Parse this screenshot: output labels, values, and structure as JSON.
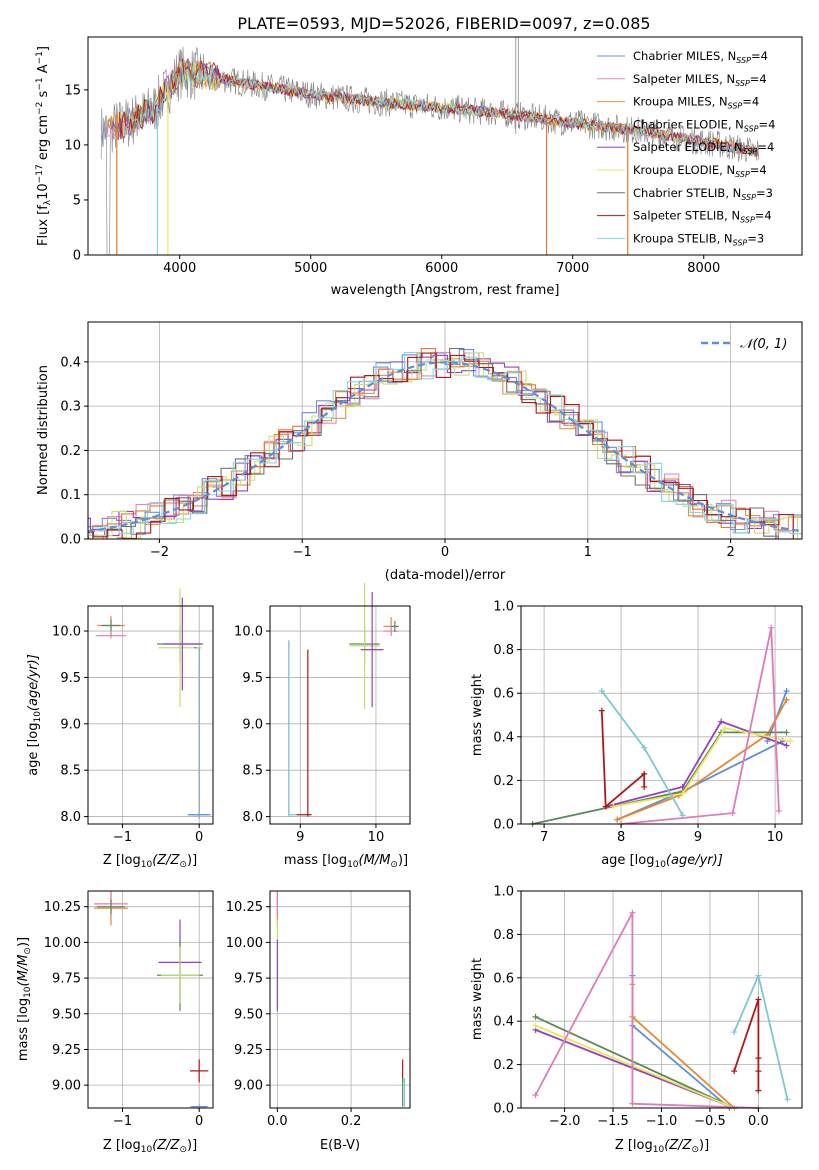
{
  "figure": {
    "title": "PLATE=0593, MJD=52026, FIBERID=0097, z=0.085"
  },
  "colors": {
    "model_series": [
      "#6a8fd8",
      "#e588be",
      "#d89a3c",
      "#e8782a",
      "#9a3fc0",
      "#e8e858",
      "#707070",
      "#b01818",
      "#80d8e0"
    ],
    "fit_lines": [
      "#5b8ee0",
      "#e07ab8",
      "#e8882a",
      "#5a8a5a",
      "#9a3fc0",
      "#e8e858",
      "#b01818",
      "#7cc8d0",
      "#c0e070"
    ],
    "data_grey": "#808080",
    "normal_curve": "#5b8ee0"
  },
  "chart_data": [
    {
      "id": "spectrum",
      "type": "line",
      "xlabel": "wavelength [Angstrom, rest frame]",
      "ylabel": "Flux [f",
      "ylabel_sub": "λ",
      "ylabel_rest": "10",
      "ylabel_sup1": "−17",
      "ylabel_units": " erg cm",
      "ylabel_sup2": "−2",
      "ylabel_s": " s",
      "ylabel_sup3": "−1",
      "ylabel_A": " A",
      "ylabel_sup4": "−1",
      "ylabel_close": "]",
      "xlim": [
        3300,
        8750
      ],
      "ylim": [
        0,
        19.8
      ],
      "xticks": [
        4000,
        5000,
        6000,
        7000,
        8000
      ],
      "yticks": [
        0,
        5,
        10,
        15
      ],
      "legend_location": "upper right",
      "legend": [
        {
          "name": "Chabrier MILES, N",
          "sub": "SSP",
          "tail": "=4"
        },
        {
          "name": "Salpeter MILES, N",
          "sub": "SSP",
          "tail": "=4"
        },
        {
          "name": "Kroupa MILES, N",
          "sub": "SSP",
          "tail": "=4"
        },
        {
          "name": "Chabrier ELODIE, N",
          "sub": "SSP",
          "tail": "=4"
        },
        {
          "name": "Salpeter ELODIE, N",
          "sub": "SSP",
          "tail": "=4"
        },
        {
          "name": "Kroupa ELODIE, N",
          "sub": "SSP",
          "tail": "=4"
        },
        {
          "name": "Chabrier STELIB, N",
          "sub": "SSP",
          "tail": "=3"
        },
        {
          "name": "Salpeter STELIB, N",
          "sub": "SSP",
          "tail": "=4"
        },
        {
          "name": "Kroupa STELIB, N",
          "sub": "SSP",
          "tail": "=3"
        }
      ],
      "continuum": {
        "x": [
          3400,
          3600,
          3800,
          4000,
          4200,
          4500,
          5000,
          5500,
          6000,
          6500,
          7000,
          7500,
          8000,
          8400
        ],
        "y": [
          11.2,
          12.0,
          13.2,
          16.6,
          16.3,
          15.6,
          14.6,
          13.9,
          13.4,
          12.8,
          12.0,
          11.3,
          10.3,
          9.4
        ]
      }
    },
    {
      "id": "residuals",
      "type": "line",
      "xlabel": "(data-model)/error",
      "ylabel": "Normed distribution",
      "xlim": [
        -2.5,
        2.5
      ],
      "ylim": [
        0,
        0.49
      ],
      "xticks": [
        -2,
        -1,
        0,
        1,
        2
      ],
      "yticks": [
        0.0,
        0.1,
        0.2,
        0.3,
        0.4
      ],
      "grid": true,
      "legend_location": "upper right",
      "legend": [
        {
          "name": "𝒩(0, 1)"
        }
      ]
    },
    {
      "id": "age_vs_Z",
      "type": "scatter",
      "xlabel": "Z [log",
      "xlabel_sub": "10",
      "xlabel_rest": "(Z/Z",
      "xlabel_sun_sub": "⊙",
      "xlabel_close": ")]",
      "ylabel": "age  [log",
      "ylabel_sub": "10",
      "ylabel_rest": "(age/yr)]",
      "xlim": [
        -1.45,
        0.18
      ],
      "ylim": [
        7.92,
        10.27
      ],
      "xticks": [
        -1,
        0
      ],
      "yticks": [
        8.0,
        8.5,
        9.0,
        9.5,
        10.0
      ],
      "grid": true
    },
    {
      "id": "age_vs_mass",
      "type": "scatter",
      "xlabel": "mass [log",
      "xlabel_sub": "10",
      "xlabel_rest": "(M/M",
      "xlabel_sun_sub": "⊙",
      "xlabel_close": ")]",
      "xlim": [
        8.6,
        10.45
      ],
      "ylim": [
        7.92,
        10.27
      ],
      "xticks": [
        9,
        10
      ],
      "yticks": [
        8.0,
        8.5,
        9.0,
        9.5,
        10.0
      ],
      "grid": true
    },
    {
      "id": "weight_vs_age",
      "type": "line",
      "xlabel": "age  [log",
      "xlabel_sub": "10",
      "xlabel_rest": "(age/yr)]",
      "ylabel": "mass weight",
      "xlim": [
        6.7,
        10.35
      ],
      "ylim": [
        0.0,
        1.0
      ],
      "xticks": [
        7,
        8,
        9,
        10
      ],
      "yticks": [
        0.0,
        0.2,
        0.4,
        0.6,
        0.8,
        1.0
      ],
      "grid": true,
      "series": [
        {
          "color_index": 0,
          "x": [
            7.95,
            8.8,
            10.1
          ],
          "y": [
            0.02,
            0.15,
            0.38
          ]
        },
        {
          "color_index": 0,
          "x": [
            9.9,
            10.15
          ],
          "y": [
            0.38,
            0.61
          ]
        },
        {
          "color_index": 2,
          "x": [
            7.95,
            8.75,
            9.9,
            10.15
          ],
          "y": [
            0.02,
            0.13,
            0.41,
            0.57
          ]
        },
        {
          "color_index": 3,
          "x": [
            6.85,
            8.8,
            9.3,
            10.15
          ],
          "y": [
            0.0,
            0.15,
            0.42,
            0.42
          ]
        },
        {
          "color_index": 4,
          "x": [
            7.8,
            8.8,
            9.3,
            10.15
          ],
          "y": [
            0.08,
            0.17,
            0.47,
            0.36
          ]
        },
        {
          "color_index": 5,
          "x": [
            7.9,
            8.8,
            9.35,
            10.2
          ],
          "y": [
            0.08,
            0.14,
            0.44,
            0.38
          ]
        },
        {
          "color_index": 6,
          "x": [
            7.75,
            7.8,
            8.3,
            8.3
          ],
          "y": [
            0.52,
            0.08,
            0.23,
            0.17
          ]
        },
        {
          "color_index": 7,
          "x": [
            7.75,
            8.3,
            8.8
          ],
          "y": [
            0.61,
            0.35,
            0.04
          ]
        },
        {
          "color_index": 1,
          "x": [
            8.0,
            9.45,
            9.95,
            10.05
          ],
          "y": [
            0.0,
            0.05,
            0.9,
            0.06
          ]
        }
      ]
    },
    {
      "id": "mass_vs_Z",
      "type": "scatter",
      "xlabel": "Z [log",
      "xlabel_sub": "10",
      "xlabel_rest": "(Z/Z",
      "xlabel_sun_sub": "⊙",
      "xlabel_close": ")]",
      "ylabel": "mass [log",
      "ylabel_sub": "10",
      "ylabel_rest": "(M/M",
      "ylabel_sun_sub": "⊙",
      "ylabel_close": ")]",
      "xlim": [
        -1.45,
        0.18
      ],
      "ylim": [
        8.84,
        10.36
      ],
      "xticks": [
        -1,
        0
      ],
      "yticks": [
        9.0,
        9.25,
        9.5,
        9.75,
        10.0,
        10.25
      ],
      "grid": true
    },
    {
      "id": "mass_vs_EBV",
      "type": "scatter",
      "xlabel": "E(B-V)",
      "xlim": [
        -0.02,
        0.36
      ],
      "ylim": [
        8.84,
        10.36
      ],
      "xticks": [
        0.0,
        0.2
      ],
      "yticks": [
        9.0,
        9.25,
        9.5,
        9.75,
        10.0,
        10.25
      ],
      "grid": true
    },
    {
      "id": "weight_vs_Z",
      "type": "line",
      "xlabel": "Z [log",
      "xlabel_sub": "10",
      "xlabel_rest": "(Z/Z",
      "xlabel_sun_sub": "⊙",
      "xlabel_close": ")]",
      "ylabel": "mass weight",
      "xlim": [
        -2.45,
        0.45
      ],
      "ylim": [
        0.0,
        1.0
      ],
      "xticks": [
        -2.0,
        -1.5,
        -1.0,
        -0.5,
        0.0
      ],
      "yticks": [
        0.0,
        0.2,
        0.4,
        0.6,
        0.8,
        1.0
      ],
      "grid": true,
      "series": [
        {
          "color_index": 0,
          "x": [
            -1.3,
            -1.3,
            -0.3
          ],
          "y": [
            0.61,
            0.38,
            0.0
          ]
        },
        {
          "color_index": 2,
          "x": [
            -1.3,
            -1.3,
            -0.25
          ],
          "y": [
            0.57,
            0.42,
            0.0
          ]
        },
        {
          "color_index": 3,
          "x": [
            -2.3,
            -0.25
          ],
          "y": [
            0.42,
            0.0
          ]
        },
        {
          "color_index": 4,
          "x": [
            -2.3,
            -0.25
          ],
          "y": [
            0.36,
            0.0
          ]
        },
        {
          "color_index": 5,
          "x": [
            -2.3,
            -0.25
          ],
          "y": [
            0.38,
            0.0
          ]
        },
        {
          "color_index": 6,
          "x": [
            -0.25,
            0.0,
            0.0,
            0.0,
            0.0
          ],
          "y": [
            0.17,
            0.5,
            0.08,
            0.23,
            0.17
          ]
        },
        {
          "color_index": 7,
          "x": [
            -0.25,
            0.0,
            0.3
          ],
          "y": [
            0.35,
            0.61,
            0.04
          ]
        },
        {
          "color_index": 1,
          "x": [
            -2.3,
            -1.3,
            -1.3,
            0.0
          ],
          "y": [
            0.06,
            0.9,
            0.02,
            0.0
          ]
        }
      ]
    }
  ]
}
